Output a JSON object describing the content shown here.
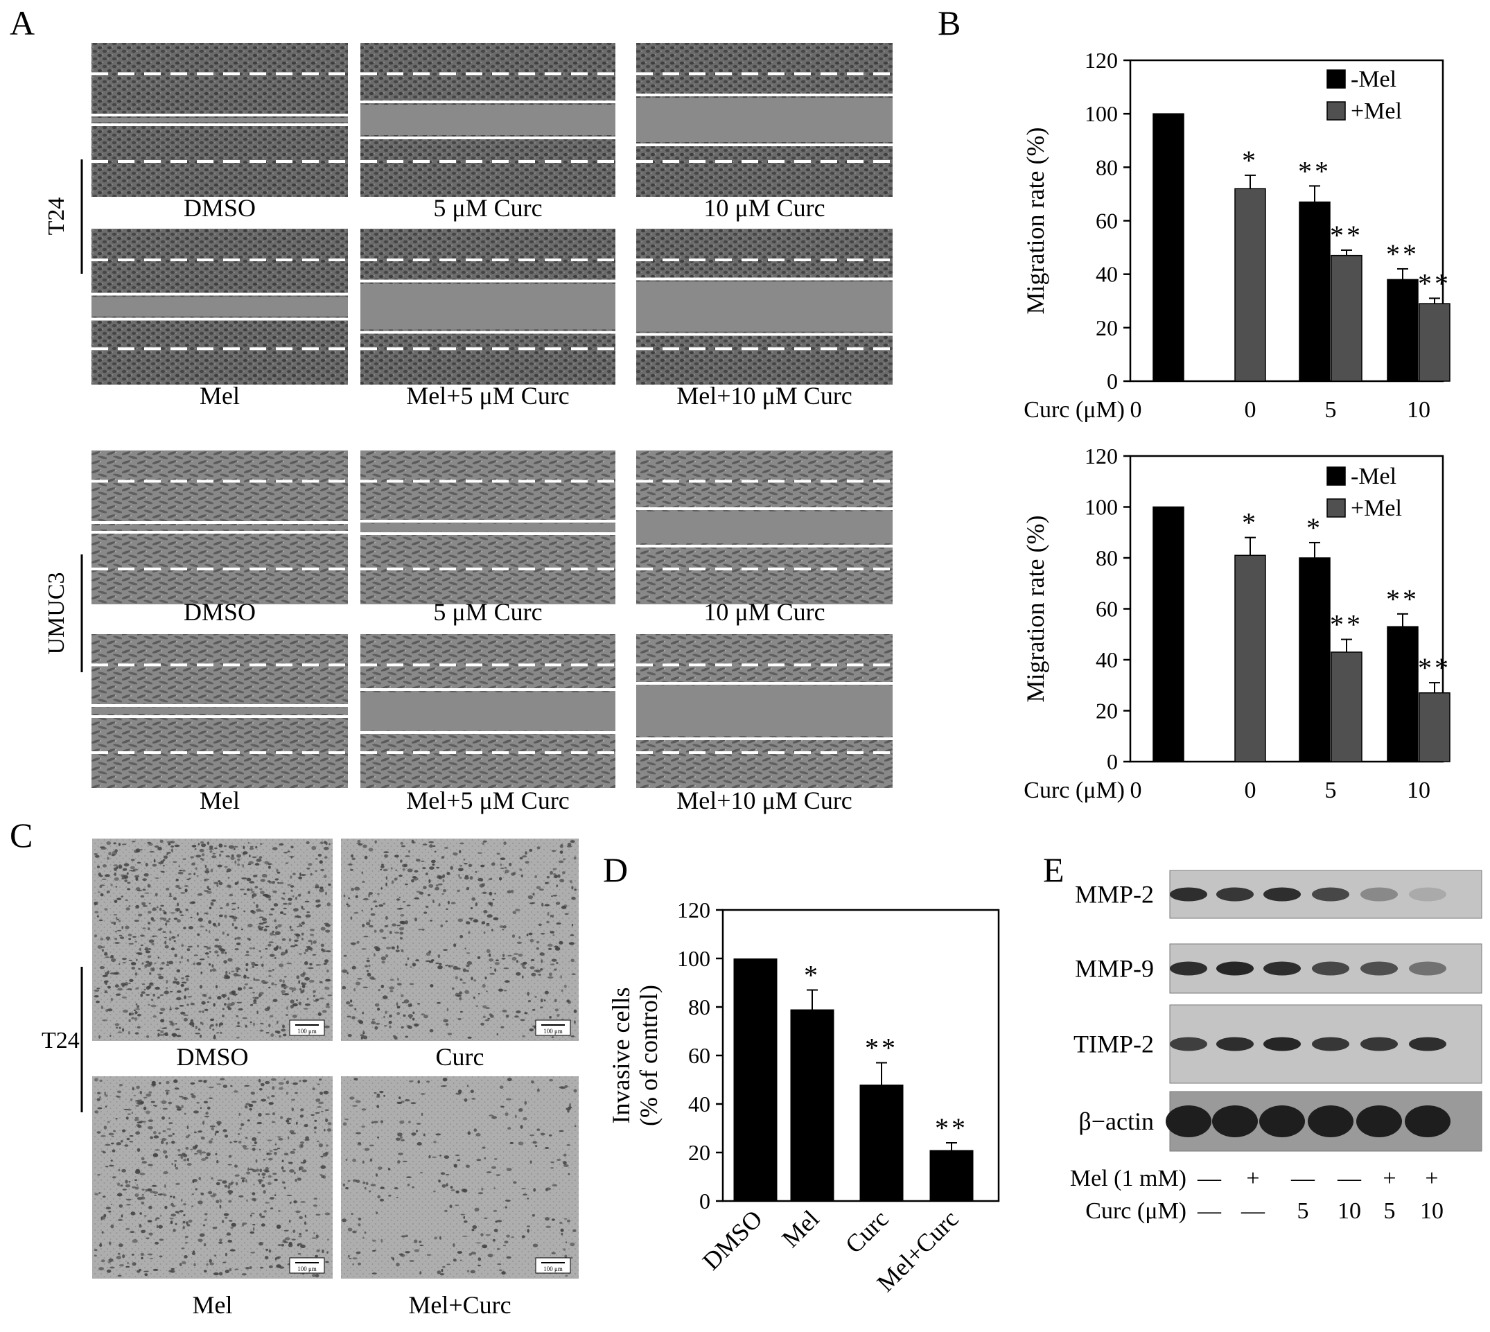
{
  "panels": {
    "a": "A",
    "b": "B",
    "c": "C",
    "d": "D",
    "e": "E"
  },
  "panel_a": {
    "t24": {
      "cell_line": "T24",
      "row1": [
        "DMSO",
        "5 μM Curc",
        "10 μM Curc"
      ],
      "row2": [
        "Mel",
        "Mel+5 μM Curc",
        "Mel+10 μM Curc"
      ]
    },
    "umuc3": {
      "cell_line": "UMUC3",
      "row1": [
        "DMSO",
        "5 μM Curc",
        "10 μM Curc"
      ],
      "row2": [
        "Mel",
        "Mel+5 μM Curc",
        "Mel+10 μM Curc"
      ]
    }
  },
  "panel_c": {
    "cell_line": "T24",
    "labels": [
      "DMSO",
      "Curc",
      "Mel",
      "Mel+Curc"
    ],
    "scale_bar": "100 μm"
  },
  "panel_e": {
    "bands": [
      "MMP-2",
      "MMP-9",
      "TIMP-2",
      "β−actin"
    ],
    "row_labels": [
      "Mel (1 mM)",
      "Curc (μM)"
    ],
    "mel": [
      "—",
      "+",
      "—",
      "—",
      "+",
      "+"
    ],
    "curc": [
      "—",
      "—",
      "5",
      "10",
      "5",
      "10"
    ],
    "band_intensity": [
      [
        0.9,
        0.85,
        0.9,
        0.75,
        0.35,
        0.15
      ],
      [
        0.9,
        0.95,
        0.9,
        0.75,
        0.7,
        0.5
      ],
      [
        0.8,
        0.9,
        0.95,
        0.85,
        0.85,
        0.9
      ],
      [
        1.0,
        1.0,
        1.0,
        1.0,
        1.0,
        1.0
      ]
    ]
  },
  "chart_data": [
    {
      "id": "B-top",
      "type": "bar",
      "ylabel": "Migration rate (%)",
      "ylim": [
        0,
        120
      ],
      "yticks": [
        0,
        20,
        40,
        60,
        80,
        100,
        120
      ],
      "xaxis_name": "Curc (μM)",
      "x_labels": [
        "0",
        "0",
        "5",
        "10"
      ],
      "legend": "top-right",
      "series": [
        {
          "name": "-Mel",
          "color": "#000000",
          "values": [
            100,
            null,
            67,
            38
          ],
          "errors": [
            0,
            null,
            6,
            4
          ],
          "stars": [
            "",
            "",
            "**",
            "**"
          ]
        },
        {
          "name": "+Mel",
          "color": "#505050",
          "values": [
            null,
            72,
            47,
            29
          ],
          "errors": [
            null,
            5,
            2,
            2
          ],
          "stars": [
            "",
            "*",
            "**",
            "**"
          ]
        }
      ]
    },
    {
      "id": "B-bottom",
      "type": "bar",
      "ylabel": "Migration rate (%)",
      "ylim": [
        0,
        120
      ],
      "yticks": [
        0,
        20,
        40,
        60,
        80,
        100,
        120
      ],
      "xaxis_name": "Curc (μM)",
      "x_labels": [
        "0",
        "0",
        "5",
        "10"
      ],
      "legend": "top-right",
      "series": [
        {
          "name": "-Mel",
          "color": "#000000",
          "values": [
            100,
            null,
            80,
            53
          ],
          "errors": [
            0,
            null,
            6,
            5
          ],
          "stars": [
            "",
            "",
            "*",
            "**"
          ]
        },
        {
          "name": "+Mel",
          "color": "#505050",
          "values": [
            null,
            81,
            43,
            27
          ],
          "errors": [
            null,
            7,
            5,
            4
          ],
          "stars": [
            "",
            "*",
            "**",
            "**"
          ]
        }
      ]
    },
    {
      "id": "D",
      "type": "bar",
      "ylabel_lines": [
        "Invasive cells",
        "(% of control)"
      ],
      "ylim": [
        0,
        120
      ],
      "yticks": [
        0,
        20,
        40,
        60,
        80,
        100,
        120
      ],
      "categories": [
        "DMSO",
        "Mel",
        "Curc",
        "Mel+Curc"
      ],
      "values": [
        100,
        79,
        48,
        21
      ],
      "errors": [
        0,
        8,
        9,
        3
      ],
      "stars": [
        "",
        "*",
        "**",
        "**"
      ],
      "color": "#000000"
    }
  ]
}
